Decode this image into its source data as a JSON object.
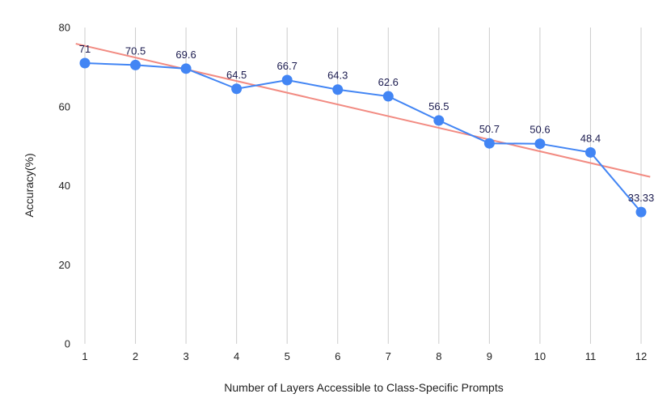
{
  "chart_data": {
    "type": "line",
    "title": "",
    "xlabel": "Number of Layers Accessible to Class-Specific Prompts",
    "ylabel": "Accuracy(%)",
    "x": [
      1,
      2,
      3,
      4,
      5,
      6,
      7,
      8,
      9,
      10,
      11,
      12
    ],
    "x_tick_labels": [
      "1",
      "2",
      "3",
      "4",
      "5",
      "6",
      "7",
      "8",
      "9",
      "10",
      "11",
      "12"
    ],
    "series": [
      {
        "name": "Accuracy",
        "values": [
          71,
          70.5,
          69.6,
          64.5,
          66.7,
          64.3,
          62.6,
          56.5,
          50.7,
          50.6,
          48.4,
          33.33
        ],
        "labels": [
          "71",
          "70.5",
          "69.6",
          "64.5",
          "66.7",
          "64.3",
          "62.6",
          "56.5",
          "50.7",
          "50.6",
          "48.4",
          "33.33"
        ],
        "color": "#4285f4"
      }
    ],
    "trendline": {
      "color": "#f28b82",
      "type": "linear"
    },
    "ylim": [
      0,
      80
    ],
    "y_ticks": [
      0,
      20,
      40,
      60,
      80
    ],
    "y_tick_labels": [
      "0",
      "20",
      "40",
      "60",
      "80"
    ],
    "grid": "vertical",
    "gridline_color": "#cccccc"
  }
}
